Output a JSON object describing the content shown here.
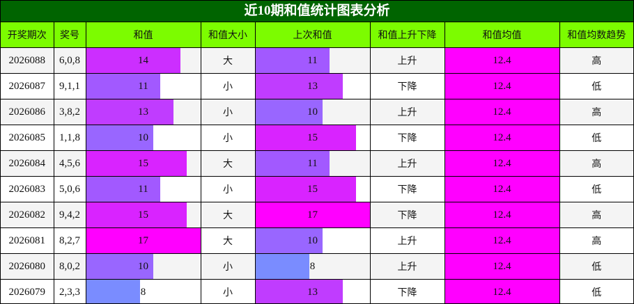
{
  "title": "近10期和值统计图表分析",
  "headers": [
    "开奖期次",
    "奖号",
    "和值",
    "和值大小",
    "上次和值",
    "和值上升下降",
    "和值均值",
    "和值均数趋势"
  ],
  "bar_max": 17,
  "value_colors": {
    "8": "#7a8cff",
    "10": "#9966ff",
    "11": "#a259ff",
    "13": "#c03cff",
    "14": "#cc2eff",
    "15": "#d923ff",
    "17": "#ff00ff"
  },
  "rows": [
    {
      "period": "2026088",
      "numbers": "6,0,8",
      "sum": 14,
      "size": "大",
      "prev_sum": 11,
      "direction": "上升",
      "avg": "12.4",
      "trend": "高"
    },
    {
      "period": "2026087",
      "numbers": "9,1,1",
      "sum": 11,
      "size": "小",
      "prev_sum": 13,
      "direction": "下降",
      "avg": "12.4",
      "trend": "低"
    },
    {
      "period": "2026086",
      "numbers": "3,8,2",
      "sum": 13,
      "size": "小",
      "prev_sum": 10,
      "direction": "上升",
      "avg": "12.4",
      "trend": "高"
    },
    {
      "period": "2026085",
      "numbers": "1,1,8",
      "sum": 10,
      "size": "小",
      "prev_sum": 15,
      "direction": "下降",
      "avg": "12.4",
      "trend": "低"
    },
    {
      "period": "2026084",
      "numbers": "4,5,6",
      "sum": 15,
      "size": "大",
      "prev_sum": 11,
      "direction": "上升",
      "avg": "12.4",
      "trend": "高"
    },
    {
      "period": "2026083",
      "numbers": "5,0,6",
      "sum": 11,
      "size": "小",
      "prev_sum": 15,
      "direction": "下降",
      "avg": "12.4",
      "trend": "低"
    },
    {
      "period": "2026082",
      "numbers": "9,4,2",
      "sum": 15,
      "size": "大",
      "prev_sum": 17,
      "direction": "下降",
      "avg": "12.4",
      "trend": "高"
    },
    {
      "period": "2026081",
      "numbers": "8,2,7",
      "sum": 17,
      "size": "大",
      "prev_sum": 10,
      "direction": "上升",
      "avg": "12.4",
      "trend": "高"
    },
    {
      "period": "2026080",
      "numbers": "8,0,2",
      "sum": 10,
      "size": "小",
      "prev_sum": 8,
      "direction": "上升",
      "avg": "12.4",
      "trend": "低"
    },
    {
      "period": "2026079",
      "numbers": "2,3,3",
      "sum": 8,
      "size": "小",
      "prev_sum": 13,
      "direction": "下降",
      "avg": "12.4",
      "trend": "低"
    }
  ]
}
